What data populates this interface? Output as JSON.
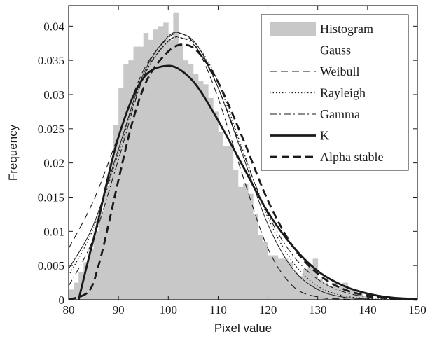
{
  "chart_data": {
    "type": "bar",
    "title": "",
    "xlabel": "Pixel value",
    "ylabel": "Frequency",
    "xlim": [
      80,
      150
    ],
    "ylim": [
      0,
      0.043
    ],
    "xticks": [
      80,
      90,
      100,
      110,
      120,
      130,
      140,
      150
    ],
    "yticks": [
      0,
      0.005,
      0.01,
      0.015,
      0.02,
      0.025,
      0.03,
      0.035,
      0.04
    ],
    "ytick_labels": [
      "0",
      "0.005",
      "0.01",
      "0.015",
      "0.02",
      "0.025",
      "0.03",
      "0.035",
      "0.04"
    ],
    "grid": false,
    "legend_position": "top-right",
    "histogram": {
      "name": "Histogram",
      "color": "#c8c8c8",
      "bin_width": 1,
      "x": [
        81,
        82,
        83,
        84,
        85,
        86,
        87,
        88,
        89,
        90,
        91,
        92,
        93,
        94,
        95,
        96,
        97,
        98,
        99,
        100,
        101,
        102,
        103,
        104,
        105,
        106,
        107,
        108,
        109,
        110,
        111,
        112,
        113,
        114,
        115,
        116,
        117,
        118,
        119,
        120,
        121,
        122,
        123,
        124,
        125,
        126,
        127,
        128,
        129,
        130,
        131,
        132,
        133,
        134,
        135,
        136,
        137,
        138,
        139,
        140
      ],
      "values": [
        0.0015,
        0.0025,
        0.004,
        0.0055,
        0.0075,
        0.01,
        0.013,
        0.0165,
        0.02,
        0.0255,
        0.031,
        0.0345,
        0.035,
        0.037,
        0.037,
        0.039,
        0.038,
        0.0395,
        0.04,
        0.0405,
        0.038,
        0.042,
        0.0375,
        0.035,
        0.0345,
        0.033,
        0.032,
        0.0315,
        0.0295,
        0.0275,
        0.0245,
        0.0225,
        0.0225,
        0.019,
        0.0165,
        0.017,
        0.0155,
        0.0125,
        0.0095,
        0.0085,
        0.0065,
        0.0065,
        0.006,
        0.006,
        0.0055,
        0.004,
        0.0035,
        0.0045,
        0.005,
        0.006,
        0.003,
        0.0025,
        0.002,
        0.0025,
        0.002,
        0.0025,
        0.0015,
        0.0015,
        0.001,
        0.0005
      ]
    },
    "series": [
      {
        "name": "Gauss",
        "style": "thin-solid",
        "x": [
          80,
          85,
          90,
          95,
          100,
          103,
          106,
          110,
          115,
          120,
          125,
          130,
          135,
          140,
          145,
          150
        ],
        "y": [
          0.0045,
          0.011,
          0.022,
          0.033,
          0.0385,
          0.0388,
          0.037,
          0.031,
          0.021,
          0.011,
          0.0045,
          0.0015,
          0.0004,
          0.0001,
          0,
          0
        ]
      },
      {
        "name": "Weibull",
        "style": "dashed",
        "x": [
          80,
          85,
          90,
          95,
          100,
          103,
          106,
          110,
          115,
          120,
          125,
          130,
          135,
          140,
          145,
          150
        ],
        "y": [
          0.0075,
          0.0145,
          0.024,
          0.0335,
          0.0383,
          0.0388,
          0.0365,
          0.0295,
          0.018,
          0.0075,
          0.002,
          0.0004,
          0.0001,
          0,
          0,
          0
        ]
      },
      {
        "name": "Rayleigh",
        "style": "dotted",
        "x": [
          80,
          85,
          90,
          95,
          100,
          103,
          106,
          110,
          115,
          120,
          125,
          130,
          135,
          140,
          145,
          150
        ],
        "y": [
          0.0035,
          0.0105,
          0.0215,
          0.0325,
          0.0378,
          0.0382,
          0.037,
          0.0318,
          0.0218,
          0.012,
          0.0055,
          0.002,
          0.0006,
          0.0002,
          0,
          0
        ]
      },
      {
        "name": "Gamma",
        "style": "dash-dot",
        "x": [
          80,
          85,
          90,
          95,
          100,
          103,
          106,
          110,
          115,
          120,
          125,
          130,
          135,
          140,
          145,
          150
        ],
        "y": [
          0.002,
          0.009,
          0.0205,
          0.0325,
          0.0378,
          0.0382,
          0.0365,
          0.031,
          0.0215,
          0.0125,
          0.0065,
          0.003,
          0.0012,
          0.0004,
          0.0001,
          0
        ]
      },
      {
        "name": "K",
        "style": "thick-solid",
        "x": [
          82,
          84,
          86,
          88,
          90,
          93,
          96,
          100,
          103,
          106,
          110,
          115,
          120,
          125,
          130,
          135,
          140,
          145,
          150
        ],
        "y": [
          0,
          0.006,
          0.0118,
          0.0182,
          0.0238,
          0.0298,
          0.0332,
          0.0342,
          0.0333,
          0.031,
          0.0262,
          0.0195,
          0.0128,
          0.0078,
          0.0042,
          0.0021,
          0.0009,
          0.0003,
          0.0001
        ]
      },
      {
        "name": "Alpha stable",
        "style": "thick-dashed",
        "x": [
          80,
          84,
          86,
          88,
          90,
          93,
          96,
          100,
          103,
          106,
          110,
          115,
          120,
          125,
          130,
          135,
          140,
          145,
          150
        ],
        "y": [
          0,
          0.0012,
          0.005,
          0.011,
          0.0175,
          0.0265,
          0.0325,
          0.0363,
          0.0373,
          0.0362,
          0.0318,
          0.0235,
          0.0145,
          0.0078,
          0.0038,
          0.0016,
          0.0006,
          0.0002,
          0
        ]
      }
    ]
  }
}
